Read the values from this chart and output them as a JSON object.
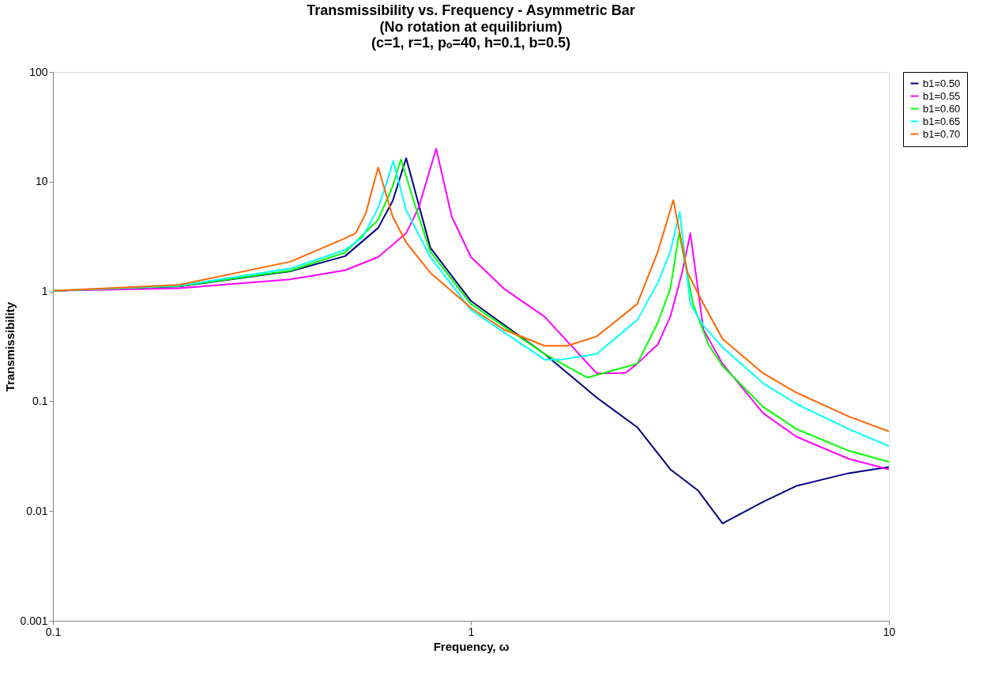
{
  "chart_data": {
    "type": "line",
    "title": "Transmissibility vs. Frequency - Asymmetric Bar",
    "subtitle": [
      "(No rotation at equilibrium)",
      "(c=1, r=1, pₒ=40, h=0.1, b=0.5)"
    ],
    "xlabel": "Frequency, ω",
    "ylabel": "Transmissibility",
    "log": "xy",
    "xlim": [
      0.1,
      10
    ],
    "xticks": [
      0.1,
      1,
      10
    ],
    "ylim": [
      0.001,
      100
    ],
    "yticks": [
      0.001,
      0.01,
      0.1,
      1,
      10,
      100
    ],
    "grid": false,
    "legend": "right",
    "marker": "none",
    "line_style": "solid",
    "series": [
      {
        "name": "b1=0.50",
        "color": "#000080",
        "x": [
          0.1,
          0.2,
          0.37,
          0.5,
          0.6,
          0.65,
          0.7,
          0.8,
          1,
          1.5,
          2,
          2.5,
          3,
          3.5,
          4,
          5,
          6,
          8,
          10
        ],
        "values": [
          1.015,
          1.11,
          1.53,
          2.1,
          3.8,
          6.7,
          16.4,
          2.5,
          0.82,
          0.27,
          0.108,
          0.058,
          0.024,
          0.0153,
          0.0077,
          0.0121,
          0.0169,
          0.0221,
          0.0252
        ]
      },
      {
        "name": "b1=0.55",
        "color": "#ff00ff",
        "x": [
          0.1,
          0.2,
          0.37,
          0.5,
          0.6,
          0.7,
          0.75,
          0.826,
          0.9,
          1,
          1.2,
          1.5,
          2,
          2.2,
          2.35,
          2.5,
          2.8,
          3,
          3.2,
          3.35,
          3.6,
          4,
          5,
          6,
          8,
          10
        ],
        "values": [
          1.013,
          1.07,
          1.29,
          1.56,
          2.06,
          3.4,
          5.8,
          20,
          4.8,
          2.06,
          1.06,
          0.59,
          0.18,
          0.18,
          0.182,
          0.22,
          0.33,
          0.59,
          1.48,
          3.4,
          0.45,
          0.22,
          0.078,
          0.0477,
          0.03,
          0.024
        ]
      },
      {
        "name": "b1=0.60",
        "color": "#00ff00",
        "x": [
          0.1,
          0.2,
          0.37,
          0.5,
          0.6,
          0.65,
          0.68,
          0.75,
          0.8,
          1,
          1.5,
          1.9,
          2.5,
          2.8,
          3,
          3.15,
          3.4,
          3.7,
          4,
          5,
          6,
          8,
          10
        ],
        "values": [
          1.015,
          1.12,
          1.55,
          2.27,
          4.5,
          9.1,
          16,
          4.8,
          2.3,
          0.77,
          0.27,
          0.164,
          0.22,
          0.52,
          1.06,
          3.4,
          0.77,
          0.33,
          0.21,
          0.089,
          0.056,
          0.0355,
          0.028
        ]
      },
      {
        "name": "b1=0.65",
        "color": "#00ffff",
        "x": [
          0.1,
          0.2,
          0.37,
          0.5,
          0.55,
          0.6,
          0.625,
          0.652,
          0.7,
          0.8,
          1,
          1.5,
          1.65,
          2,
          2.5,
          2.8,
          3,
          3.16,
          3.35,
          3.6,
          4,
          5,
          6,
          8,
          10
        ],
        "values": [
          1.015,
          1.13,
          1.62,
          2.4,
          3.1,
          5.8,
          9.1,
          15.5,
          5.5,
          2.06,
          0.68,
          0.24,
          0.24,
          0.27,
          0.55,
          1.2,
          2.3,
          5.3,
          0.77,
          0.49,
          0.31,
          0.146,
          0.095,
          0.056,
          0.039
        ]
      },
      {
        "name": "b1=0.70",
        "color": "#ff6600",
        "x": [
          0.1,
          0.2,
          0.37,
          0.5,
          0.53,
          0.56,
          0.6,
          0.65,
          0.7,
          0.8,
          1,
          1.2,
          1.5,
          1.7,
          2,
          2.5,
          2.8,
          3.05,
          3.3,
          3.6,
          4,
          5,
          6,
          8,
          10
        ],
        "values": [
          1.015,
          1.15,
          1.87,
          3.05,
          3.4,
          5.1,
          13.5,
          4.8,
          2.8,
          1.48,
          0.71,
          0.45,
          0.32,
          0.32,
          0.39,
          0.77,
          2.3,
          6.8,
          1.48,
          0.77,
          0.37,
          0.18,
          0.12,
          0.073,
          0.053
        ]
      }
    ]
  }
}
